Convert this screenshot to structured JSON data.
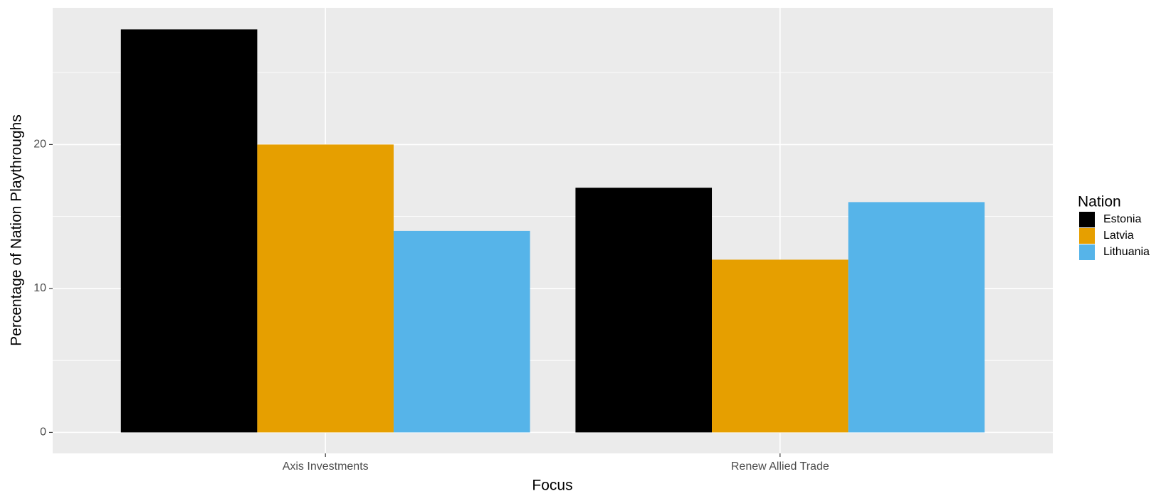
{
  "chart_data": {
    "type": "bar",
    "x_label": "Focus",
    "y_label": "Percentage of Nation Playthroughs",
    "categories": [
      "Axis Investments",
      "Renew Allied Trade"
    ],
    "series": [
      {
        "name": "Estonia",
        "color": "#000000",
        "values": [
          28,
          17
        ]
      },
      {
        "name": "Latvia",
        "color": "#e69f00",
        "values": [
          20,
          12
        ]
      },
      {
        "name": "Lithuania",
        "color": "#56b4e9",
        "values": [
          14,
          16
        ]
      }
    ],
    "legend_title": "Nation",
    "legend_position": "right",
    "ylim": [
      -1.46,
      29.5
    ],
    "yticks": [
      0,
      10,
      20
    ],
    "grid": true
  }
}
